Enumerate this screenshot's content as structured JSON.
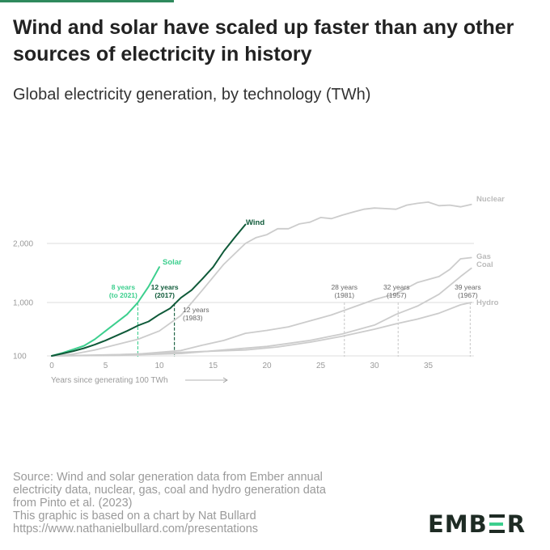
{
  "header": {
    "title": "Wind and solar have scaled up faster than any other sources of electricity in history",
    "subtitle": "Global electricity generation, by technology (TWh)"
  },
  "colors": {
    "wind": "#0f5a39",
    "solar": "#3ccf8e",
    "other": "#cccccc",
    "grid": "#dddddd",
    "axis_text": "#9a9a9a",
    "accent_bar": "#2f8a5d",
    "logo_dark": "#1e2b24",
    "logo_green": "#3ccf8e"
  },
  "chart_data": {
    "type": "line",
    "title": "Global electricity generation, by technology (TWh)",
    "xlabel": "Years since generating 100 TWh",
    "ylabel": "",
    "x_ticks": [
      0,
      5,
      10,
      15,
      20,
      25,
      30,
      35
    ],
    "y_ticks": [
      100,
      1000,
      2000
    ],
    "y_tick_labels": [
      "100",
      "1,000",
      "2,000"
    ],
    "xlim": [
      0,
      39
    ],
    "ylim": [
      100,
      2600
    ],
    "grid": true,
    "legend": "direct labels at line ends",
    "series": [
      {
        "name": "Wind",
        "x": [
          0,
          1,
          2,
          3,
          4,
          5,
          6,
          7,
          8,
          9,
          10,
          11,
          12,
          13,
          14,
          15,
          16,
          17,
          18
        ],
        "y": [
          100,
          140,
          180,
          230,
          290,
          360,
          440,
          520,
          610,
          680,
          800,
          900,
          1080,
          1210,
          1400,
          1600,
          1870,
          2100,
          2320
        ]
      },
      {
        "name": "Solar",
        "x": [
          0,
          1,
          2,
          3,
          4,
          5,
          6,
          7,
          8,
          9,
          10
        ],
        "y": [
          100,
          150,
          210,
          270,
          380,
          520,
          660,
          800,
          1000,
          1270,
          1600
        ]
      },
      {
        "name": "Nuclear",
        "x": [
          0,
          2,
          4,
          6,
          8,
          10,
          12,
          14,
          16,
          18,
          19,
          20,
          21,
          22,
          23,
          24,
          25,
          26,
          27,
          28,
          29,
          30,
          31,
          32,
          33,
          34,
          35,
          36,
          37,
          38,
          39
        ],
        "y": [
          100,
          130,
          200,
          290,
          380,
          520,
          780,
          1210,
          1650,
          2000,
          2100,
          2150,
          2250,
          2250,
          2330,
          2360,
          2440,
          2420,
          2480,
          2530,
          2580,
          2600,
          2590,
          2580,
          2650,
          2680,
          2700,
          2640,
          2650,
          2620,
          2660
        ]
      },
      {
        "name": "Gas",
        "x": [
          0,
          4,
          8,
          12,
          14,
          16,
          18,
          20,
          22,
          24,
          26,
          28,
          30,
          32,
          34,
          36,
          37,
          38,
          39
        ],
        "y": [
          100,
          110,
          130,
          190,
          280,
          360,
          480,
          530,
          590,
          690,
          790,
          920,
          1050,
          1150,
          1340,
          1440,
          1560,
          1740,
          1760
        ]
      },
      {
        "name": "Coal",
        "x": [
          0,
          6,
          12,
          16,
          20,
          24,
          27,
          30,
          32,
          34,
          36,
          38,
          39
        ],
        "y": [
          100,
          110,
          140,
          200,
          260,
          360,
          470,
          620,
          800,
          940,
          1140,
          1440,
          1580
        ]
      },
      {
        "name": "Hydro",
        "x": [
          0,
          6,
          12,
          18,
          21,
          24,
          27,
          30,
          32,
          34,
          36,
          38,
          39
        ],
        "y": [
          100,
          120,
          160,
          200,
          250,
          330,
          430,
          550,
          640,
          720,
          820,
          960,
          1000
        ]
      }
    ],
    "annotations": [
      {
        "label": "8 years",
        "sublabel": "(to 2021)",
        "x": 8,
        "series": "Solar"
      },
      {
        "label": "12 years",
        "sublabel": "(2017)",
        "x": 11.4,
        "series": "Wind"
      },
      {
        "label": "12 years",
        "sublabel": "(1983)",
        "x": 12,
        "series": "Nuclear"
      },
      {
        "label": "28 years",
        "sublabel": "(1981)",
        "x": 27.2,
        "series": "Hydro"
      },
      {
        "label": "32 years",
        "sublabel": "(1957)",
        "x": 32.2,
        "series": "Coal"
      },
      {
        "label": "39 years",
        "sublabel": "(1967)",
        "x": 38.9,
        "series": "Gas"
      }
    ]
  },
  "footer": {
    "source_lines": [
      "Source: Wind and solar generation data from Ember annual",
      "electricity data, nuclear, gas, coal and hydro generation data",
      "from Pinto et al. (2023)",
      "This graphic is based on a chart by Nat Bullard",
      "https://www.nathanielbullard.com/presentations"
    ],
    "logo_text": "EMBER"
  }
}
